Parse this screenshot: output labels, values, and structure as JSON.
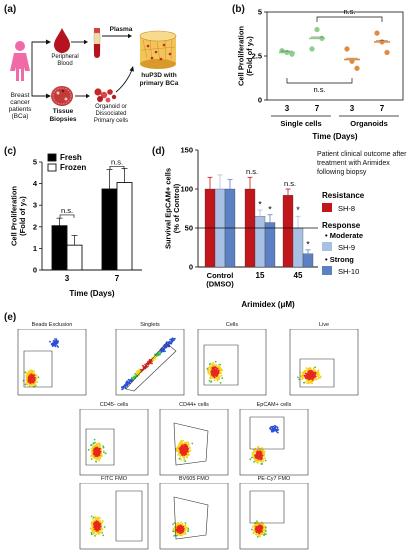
{
  "panels": {
    "a": {
      "letter": "(a)",
      "patient_label": "Breast cancer patients (BCa)",
      "blood_label": "Peripheral Blood",
      "tissue_label": "Tissue Biopsies",
      "plasma_label": "Plasma",
      "organoid_label": "Organoid or Dissociated Primary cells",
      "hup3d_label": "huP3D with primary BCa"
    },
    "b": {
      "letter": "(b)"
    },
    "c": {
      "letter": "(c)"
    },
    "d": {
      "letter": "(d)",
      "note": "Patient clinical outcome after treatment with Arimidex following biopsy",
      "resistance_title": "Resistance",
      "response_title": "Response",
      "moderate_label": "Moderate",
      "strong_label": "Strong"
    },
    "e": {
      "letter": "(e)",
      "plots": [
        {
          "title": "Beads Exclusion"
        },
        {
          "title": "Singlets"
        },
        {
          "title": "Cells"
        },
        {
          "title": "Live"
        },
        {
          "title": "CD45- cells"
        },
        {
          "title": "CD44+ cells"
        },
        {
          "title": "EpCAM+ cells"
        },
        {
          "title": "FITC FMO"
        },
        {
          "title": "BV605 FMO"
        },
        {
          "title": "PE-Cy7 FMO"
        }
      ]
    }
  },
  "chart_data": [
    {
      "id": "b",
      "type": "scatter",
      "ylabel": "Cell Proliferation (Fold of y₀)",
      "xlabel": "Time (Days)",
      "categories": [
        "3",
        "7",
        "3",
        "7"
      ],
      "groups": [
        "Single cells",
        "Organoids"
      ],
      "ylim": [
        0,
        5
      ],
      "yticks": [
        "0",
        "2.5",
        "5"
      ],
      "series": [
        {
          "x": "3",
          "group": "Single cells",
          "values": [
            2.8,
            2.7,
            2.6
          ],
          "mean": 2.7,
          "color": "#8ccf8c"
        },
        {
          "x": "7",
          "group": "Single cells",
          "values": [
            2.9,
            4.0,
            3.5
          ],
          "mean": 3.5,
          "color": "#8ccf8c"
        },
        {
          "x": "3",
          "group": "Organoids",
          "values": [
            2.9,
            2.2,
            1.8
          ],
          "mean": 2.3,
          "color": "#e38a3c"
        },
        {
          "x": "7",
          "group": "Organoids",
          "values": [
            3.8,
            3.3,
            2.7
          ],
          "mean": 3.3,
          "color": "#e38a3c"
        }
      ],
      "annotations": [
        "n.s.",
        "n.s."
      ]
    },
    {
      "id": "c",
      "type": "bar",
      "ylabel": "Cell Proliferation (Fold of y₀)",
      "xlabel": "Time (Days)",
      "categories": [
        "3",
        "7"
      ],
      "ylim": [
        0,
        5
      ],
      "yticks": [
        "0",
        "1",
        "2",
        "3",
        "4",
        "5"
      ],
      "series": [
        {
          "name": "Fresh",
          "values": [
            2.05,
            3.75
          ],
          "errors": [
            0.35,
            0.9
          ],
          "color": "#000000"
        },
        {
          "name": "Frozen",
          "values": [
            1.15,
            4.05
          ],
          "errors": [
            0.45,
            0.65
          ],
          "color": "#ffffff"
        }
      ],
      "legend": "top-left",
      "annotations": [
        "n.s.",
        "n.s."
      ]
    },
    {
      "id": "d",
      "type": "bar",
      "ylabel": "Survival EpCAM+ cells (% of Control)",
      "xlabel": "Arimidex (μM)",
      "categories": [
        "Control (DMSO)",
        "15",
        "45"
      ],
      "ylim": [
        0,
        150
      ],
      "yticks": [
        "0",
        "50",
        "100",
        "150"
      ],
      "reference_line": 50,
      "series": [
        {
          "name": "SH-8",
          "values": [
            100,
            100,
            92
          ],
          "errors": [
            15,
            15,
            8
          ],
          "color": "#c0161c"
        },
        {
          "name": "SH-9",
          "values": [
            100,
            65,
            50
          ],
          "errors": [
            18,
            8,
            15
          ],
          "color": "#a8c0e4"
        },
        {
          "name": "SH-10",
          "values": [
            100,
            57,
            17
          ],
          "errors": [
            12,
            10,
            5
          ],
          "color": "#5b80c4"
        }
      ],
      "annotations": [
        "n.s.",
        "n.s.",
        "*",
        "*",
        "*",
        "*"
      ]
    }
  ]
}
